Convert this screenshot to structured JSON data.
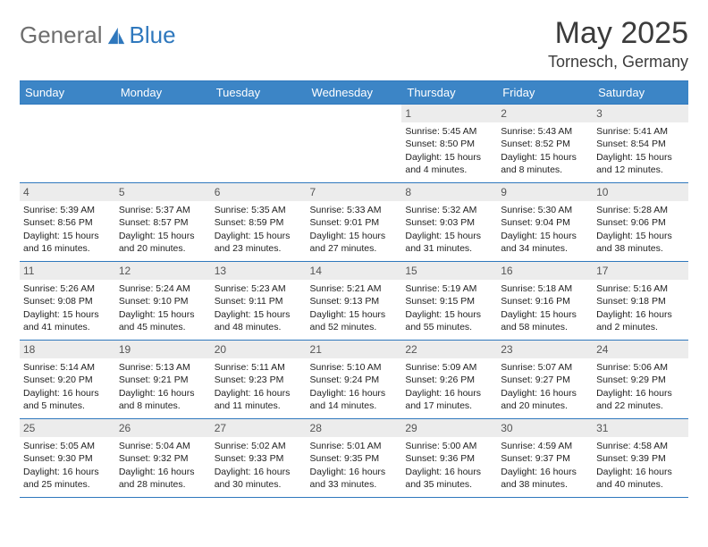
{
  "brand": {
    "part1": "General",
    "part2": "Blue"
  },
  "title": {
    "month": "May 2025",
    "location": "Tornesch, Germany"
  },
  "colors": {
    "header_bg": "#3c85c6",
    "border": "#2f78bd",
    "daynum_bg": "#ececec",
    "text": "#222222",
    "brand_gray": "#6e6e6e",
    "brand_blue": "#2f78bd"
  },
  "weekdays": [
    "Sunday",
    "Monday",
    "Tuesday",
    "Wednesday",
    "Thursday",
    "Friday",
    "Saturday"
  ],
  "weeks": [
    [
      {
        "n": "",
        "empty": true
      },
      {
        "n": "",
        "empty": true
      },
      {
        "n": "",
        "empty": true
      },
      {
        "n": "",
        "empty": true
      },
      {
        "n": "1",
        "sr": "5:45 AM",
        "ss": "8:50 PM",
        "dl": "15 hours and 4 minutes."
      },
      {
        "n": "2",
        "sr": "5:43 AM",
        "ss": "8:52 PM",
        "dl": "15 hours and 8 minutes."
      },
      {
        "n": "3",
        "sr": "5:41 AM",
        "ss": "8:54 PM",
        "dl": "15 hours and 12 minutes."
      }
    ],
    [
      {
        "n": "4",
        "sr": "5:39 AM",
        "ss": "8:56 PM",
        "dl": "15 hours and 16 minutes."
      },
      {
        "n": "5",
        "sr": "5:37 AM",
        "ss": "8:57 PM",
        "dl": "15 hours and 20 minutes."
      },
      {
        "n": "6",
        "sr": "5:35 AM",
        "ss": "8:59 PM",
        "dl": "15 hours and 23 minutes."
      },
      {
        "n": "7",
        "sr": "5:33 AM",
        "ss": "9:01 PM",
        "dl": "15 hours and 27 minutes."
      },
      {
        "n": "8",
        "sr": "5:32 AM",
        "ss": "9:03 PM",
        "dl": "15 hours and 31 minutes."
      },
      {
        "n": "9",
        "sr": "5:30 AM",
        "ss": "9:04 PM",
        "dl": "15 hours and 34 minutes."
      },
      {
        "n": "10",
        "sr": "5:28 AM",
        "ss": "9:06 PM",
        "dl": "15 hours and 38 minutes."
      }
    ],
    [
      {
        "n": "11",
        "sr": "5:26 AM",
        "ss": "9:08 PM",
        "dl": "15 hours and 41 minutes."
      },
      {
        "n": "12",
        "sr": "5:24 AM",
        "ss": "9:10 PM",
        "dl": "15 hours and 45 minutes."
      },
      {
        "n": "13",
        "sr": "5:23 AM",
        "ss": "9:11 PM",
        "dl": "15 hours and 48 minutes."
      },
      {
        "n": "14",
        "sr": "5:21 AM",
        "ss": "9:13 PM",
        "dl": "15 hours and 52 minutes."
      },
      {
        "n": "15",
        "sr": "5:19 AM",
        "ss": "9:15 PM",
        "dl": "15 hours and 55 minutes."
      },
      {
        "n": "16",
        "sr": "5:18 AM",
        "ss": "9:16 PM",
        "dl": "15 hours and 58 minutes."
      },
      {
        "n": "17",
        "sr": "5:16 AM",
        "ss": "9:18 PM",
        "dl": "16 hours and 2 minutes."
      }
    ],
    [
      {
        "n": "18",
        "sr": "5:14 AM",
        "ss": "9:20 PM",
        "dl": "16 hours and 5 minutes."
      },
      {
        "n": "19",
        "sr": "5:13 AM",
        "ss": "9:21 PM",
        "dl": "16 hours and 8 minutes."
      },
      {
        "n": "20",
        "sr": "5:11 AM",
        "ss": "9:23 PM",
        "dl": "16 hours and 11 minutes."
      },
      {
        "n": "21",
        "sr": "5:10 AM",
        "ss": "9:24 PM",
        "dl": "16 hours and 14 minutes."
      },
      {
        "n": "22",
        "sr": "5:09 AM",
        "ss": "9:26 PM",
        "dl": "16 hours and 17 minutes."
      },
      {
        "n": "23",
        "sr": "5:07 AM",
        "ss": "9:27 PM",
        "dl": "16 hours and 20 minutes."
      },
      {
        "n": "24",
        "sr": "5:06 AM",
        "ss": "9:29 PM",
        "dl": "16 hours and 22 minutes."
      }
    ],
    [
      {
        "n": "25",
        "sr": "5:05 AM",
        "ss": "9:30 PM",
        "dl": "16 hours and 25 minutes."
      },
      {
        "n": "26",
        "sr": "5:04 AM",
        "ss": "9:32 PM",
        "dl": "16 hours and 28 minutes."
      },
      {
        "n": "27",
        "sr": "5:02 AM",
        "ss": "9:33 PM",
        "dl": "16 hours and 30 minutes."
      },
      {
        "n": "28",
        "sr": "5:01 AM",
        "ss": "9:35 PM",
        "dl": "16 hours and 33 minutes."
      },
      {
        "n": "29",
        "sr": "5:00 AM",
        "ss": "9:36 PM",
        "dl": "16 hours and 35 minutes."
      },
      {
        "n": "30",
        "sr": "4:59 AM",
        "ss": "9:37 PM",
        "dl": "16 hours and 38 minutes."
      },
      {
        "n": "31",
        "sr": "4:58 AM",
        "ss": "9:39 PM",
        "dl": "16 hours and 40 minutes."
      }
    ]
  ],
  "labels": {
    "sunrise": "Sunrise: ",
    "sunset": "Sunset: ",
    "daylight": "Daylight: "
  }
}
